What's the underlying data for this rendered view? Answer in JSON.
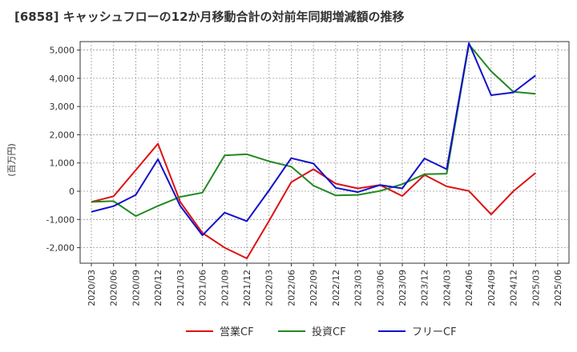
{
  "chart_data": {
    "type": "line",
    "title": "[6858]  キャッシュフローの12か月移動合計の対前年同期増減額の推移",
    "ylabel": "(百万円)",
    "xlabel": "",
    "ylim": [
      -2550,
      5300
    ],
    "yticks": [
      -2000,
      -1000,
      0,
      1000,
      2000,
      3000,
      4000,
      5000
    ],
    "ytick_labels": [
      "-2,000",
      "-1,000",
      "0",
      "1,000",
      "2,000",
      "3,000",
      "4,000",
      "5,000"
    ],
    "grid": true,
    "legend_position": "bottom",
    "categories": [
      "2020/03",
      "2020/06",
      "2020/09",
      "2020/12",
      "2021/03",
      "2021/06",
      "2021/09",
      "2021/12",
      "2022/03",
      "2022/06",
      "2022/09",
      "2022/12",
      "2023/03",
      "2023/06",
      "2023/09",
      "2023/12",
      "2024/03",
      "2024/06",
      "2024/09",
      "2024/12",
      "2025/03",
      "2025/06"
    ],
    "series": [
      {
        "name": "営業CF",
        "color": "#dd1111",
        "values": [
          -380,
          -180,
          750,
          1680,
          -380,
          -1480,
          -2000,
          -2380,
          -1050,
          320,
          780,
          270,
          100,
          220,
          -170,
          580,
          170,
          10,
          -820,
          0,
          650,
          null
        ]
      },
      {
        "name": "投資CF",
        "color": "#228822",
        "values": [
          -380,
          -350,
          -880,
          -520,
          -200,
          -50,
          1270,
          1310,
          1060,
          870,
          200,
          -150,
          -130,
          10,
          250,
          600,
          620,
          5200,
          4250,
          3520,
          3450,
          null
        ]
      },
      {
        "name": "フリーCF",
        "color": "#1111cc",
        "values": [
          -730,
          -530,
          -130,
          1130,
          -520,
          -1560,
          -760,
          -1060,
          30,
          1170,
          980,
          120,
          -30,
          220,
          100,
          1160,
          780,
          5250,
          3400,
          3500,
          4100,
          null
        ]
      }
    ]
  }
}
